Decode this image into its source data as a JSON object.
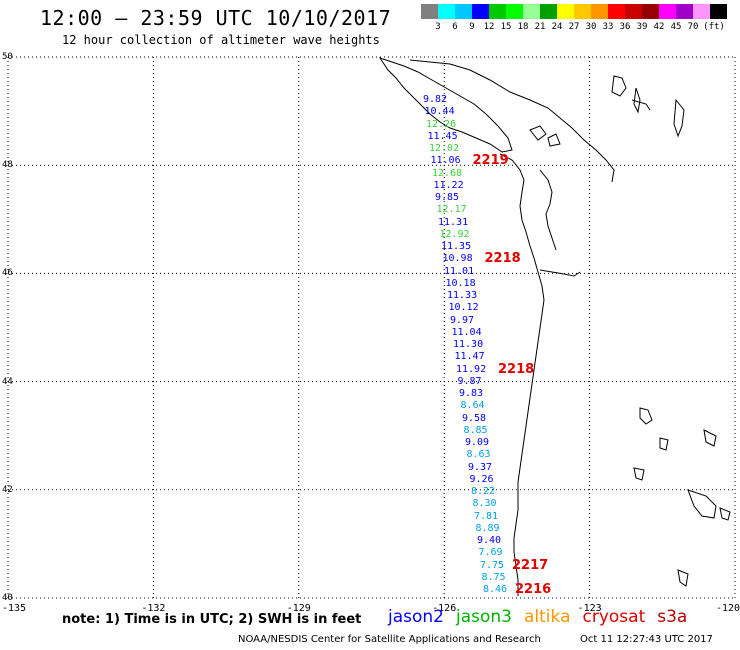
{
  "header": {
    "title": "12:00 – 23:59 UTC 10/10/2017",
    "subtitle": "12 hour collection of altimeter wave heights"
  },
  "scale": {
    "colors": [
      "#808080",
      "#00ffff",
      "#00c8ff",
      "#0000ff",
      "#00c800",
      "#00ff00",
      "#96ff96",
      "#00a000",
      "#ffff00",
      "#ffc800",
      "#ff9600",
      "#ff0000",
      "#c80000",
      "#960000",
      "#ff00ff",
      "#a000c8",
      "#ff96ff",
      "#000000"
    ],
    "labels": [
      "3",
      "6",
      "9",
      "12",
      "15",
      "18",
      "21",
      "24",
      "27",
      "30",
      "33",
      "36",
      "39",
      "42",
      "45",
      "70",
      "(ft)"
    ]
  },
  "map": {
    "lat_labels": [
      "50",
      "48",
      "46",
      "44",
      "42",
      "40"
    ],
    "lon_labels": [
      "-135",
      "-132",
      "-129",
      "-126",
      "-123",
      "-120"
    ],
    "lat_range": [
      40,
      50
    ],
    "lon_range": [
      -135,
      -120
    ],
    "coastline": "Pacific Northwest coast (Vancouver Island, Washington, Oregon, Northern California)"
  },
  "wave_heights": [
    {
      "value": "9.82",
      "color": "#0000ff"
    },
    {
      "value": "10.44",
      "color": "#0000ff"
    },
    {
      "value": "12.26",
      "color": "#3cd23c"
    },
    {
      "value": "11.45",
      "color": "#0000ff"
    },
    {
      "value": "12.02",
      "color": "#3cd23c"
    },
    {
      "value": "11.06",
      "color": "#0000ff"
    },
    {
      "value": "12.68",
      "color": "#3cd23c"
    },
    {
      "value": "11.22",
      "color": "#0000ff"
    },
    {
      "value": "9.85",
      "color": "#0000ff"
    },
    {
      "value": "12.17",
      "color": "#3cd23c"
    },
    {
      "value": "11.31",
      "color": "#0000ff"
    },
    {
      "value": "12.92",
      "color": "#3cd23c"
    },
    {
      "value": "11.35",
      "color": "#0000ff"
    },
    {
      "value": "10.98",
      "color": "#0000ff"
    },
    {
      "value": "11.01",
      "color": "#0000ff"
    },
    {
      "value": "10.18",
      "color": "#0000ff"
    },
    {
      "value": "11.33",
      "color": "#0000ff"
    },
    {
      "value": "10.12",
      "color": "#0000ff"
    },
    {
      "value": "9.97",
      "color": "#0000ff"
    },
    {
      "value": "11.04",
      "color": "#0000ff"
    },
    {
      "value": "11.30",
      "color": "#0000ff"
    },
    {
      "value": "11.47",
      "color": "#0000ff"
    },
    {
      "value": "11.92",
      "color": "#0000ff"
    },
    {
      "value": "9.87",
      "color": "#0000ff"
    },
    {
      "value": "9.83",
      "color": "#0000ff"
    },
    {
      "value": "8.64",
      "color": "#00a0e6"
    },
    {
      "value": "9.58",
      "color": "#0000ff"
    },
    {
      "value": "8.85",
      "color": "#00a0e6"
    },
    {
      "value": "9.09",
      "color": "#0000ff"
    },
    {
      "value": "8.63",
      "color": "#00a0e6"
    },
    {
      "value": "9.37",
      "color": "#0000ff"
    },
    {
      "value": "9.26",
      "color": "#0000ff"
    },
    {
      "value": "8.22",
      "color": "#00a0e6"
    },
    {
      "value": "8.30",
      "color": "#00a0e6"
    },
    {
      "value": "7.81",
      "color": "#00a0e6"
    },
    {
      "value": "8.89",
      "color": "#00a0e6"
    },
    {
      "value": "9.40",
      "color": "#0000ff"
    },
    {
      "value": "7.69",
      "color": "#00a0e6"
    },
    {
      "value": "7.75",
      "color": "#00a0e6"
    },
    {
      "value": "8.75",
      "color": "#00a0e6"
    },
    {
      "value": "8.46",
      "color": "#00a0e6"
    }
  ],
  "pass_labels": [
    "2219",
    "2218",
    "2218",
    "2217",
    "2216"
  ],
  "footer": {
    "note": "note:  1) Time is in UTC;  2) SWH is in feet",
    "satellites": [
      {
        "name": "jason2",
        "color": "#0000ff"
      },
      {
        "name": "jason3",
        "color": "#00b400"
      },
      {
        "name": "altika",
        "color": "#ff9600"
      },
      {
        "name": "cryosat",
        "color": "#e00000"
      },
      {
        "name": "s3a",
        "color": "#b40000"
      }
    ],
    "credit": "NOAA/NESDIS Center for Satellite Applications and Research",
    "timestamp": "Oct 11 12:27:43 UTC 2017"
  }
}
